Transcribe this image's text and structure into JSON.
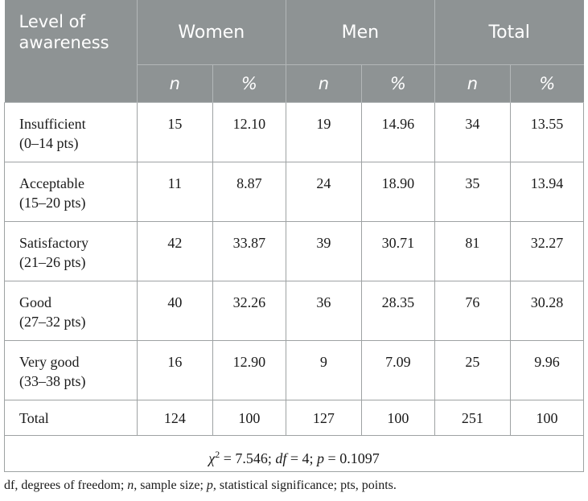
{
  "header": {
    "level_label": "Level of awareness",
    "groups": [
      "Women",
      "Men",
      "Total"
    ],
    "sub_n": "n",
    "sub_pct": "%"
  },
  "rows": [
    {
      "label": "Insufficient",
      "range": "(0–14 pts)",
      "women_n": "15",
      "women_pct": "12.10",
      "men_n": "19",
      "men_pct": "14.96",
      "total_n": "34",
      "total_pct": "13.55"
    },
    {
      "label": "Acceptable",
      "range": "(15–20 pts)",
      "women_n": "11",
      "women_pct": "8.87",
      "men_n": "24",
      "men_pct": "18.90",
      "total_n": "35",
      "total_pct": "13.94"
    },
    {
      "label": "Satisfactory",
      "range": "(21–26 pts)",
      "women_n": "42",
      "women_pct": "33.87",
      "men_n": "39",
      "men_pct": "30.71",
      "total_n": "81",
      "total_pct": "32.27"
    },
    {
      "label": "Good",
      "range": "(27–32 pts)",
      "women_n": "40",
      "women_pct": "32.26",
      "men_n": "36",
      "men_pct": "28.35",
      "total_n": "76",
      "total_pct": "30.28"
    },
    {
      "label": "Very good",
      "range": "(33–38 pts)",
      "women_n": "16",
      "women_pct": "12.90",
      "men_n": "9",
      "men_pct": "7.09",
      "total_n": "25",
      "total_pct": "9.96"
    }
  ],
  "total_row": {
    "label": "Total",
    "women_n": "124",
    "women_pct": "100",
    "men_n": "127",
    "men_pct": "100",
    "total_n": "251",
    "total_pct": "100"
  },
  "statistic": {
    "chi_symbol": "χ",
    "chi_power": "2",
    "chi_value": " = 7.546; ",
    "df_label": "df",
    "df_value": " = 4; ",
    "p_label": "p",
    "p_value": " = 0.1097"
  },
  "footnote": {
    "part1": "df, degrees of freedom; ",
    "n_label": "n",
    "part2": ", sample size; ",
    "p_label": "p",
    "part3": ", statistical significance; pts, points."
  },
  "colors": {
    "header_bg": "#8e9394",
    "header_text": "#ffffff",
    "border": "#9ea2a3"
  }
}
